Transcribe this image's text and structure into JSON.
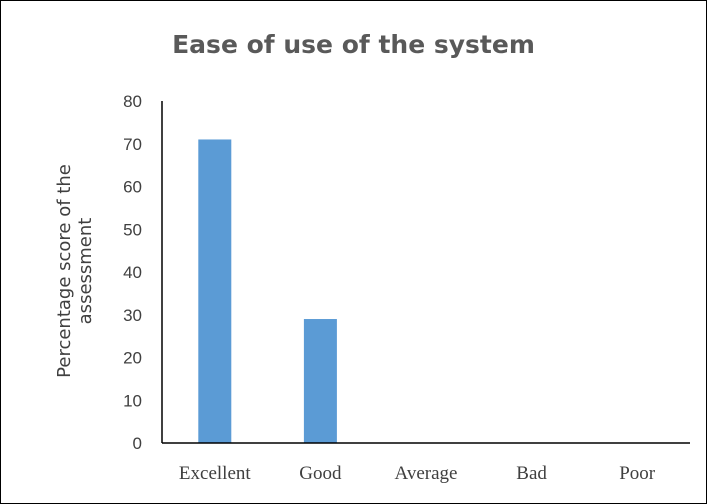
{
  "chart_data": {
    "type": "bar",
    "title": "Ease of use of the system",
    "ylabel": "Percentage score of the assessment",
    "ylabel_lines": [
      "Percentage score of the",
      "assessment"
    ],
    "xlabel": "",
    "categories": [
      "Excellent",
      "Good",
      "Average",
      "Bad",
      "Poor"
    ],
    "values": [
      71,
      29,
      0,
      0,
      0
    ],
    "ylim": [
      0,
      80
    ],
    "yticks": [
      0,
      10,
      20,
      30,
      40,
      50,
      60,
      70,
      80
    ],
    "grid": false,
    "legend": "none",
    "bar_color": "#5b9bd5"
  }
}
